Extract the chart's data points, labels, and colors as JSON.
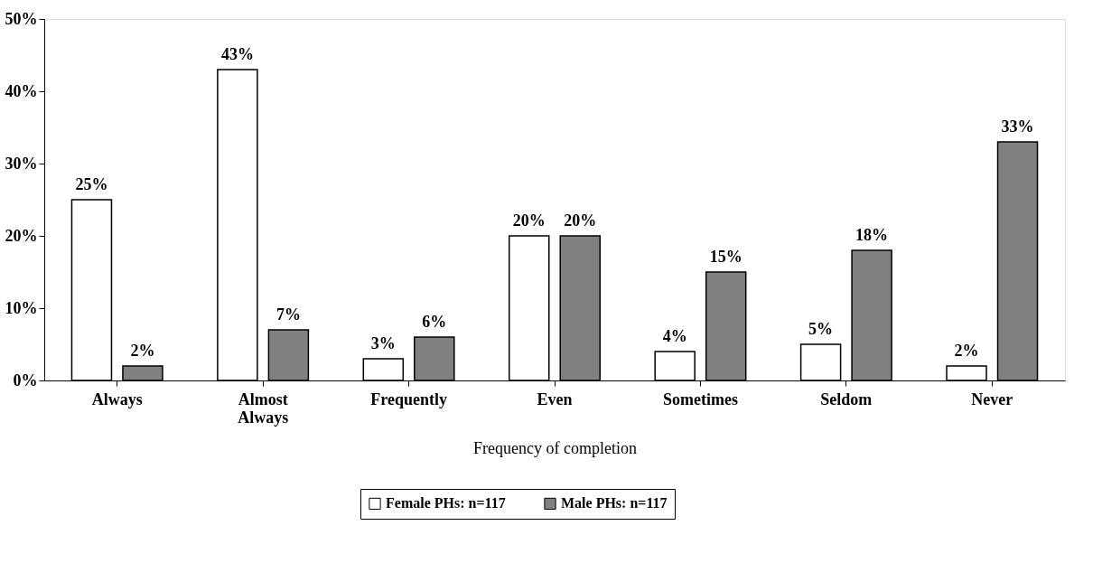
{
  "chart_data": {
    "type": "bar",
    "xlabel": "Frequency of completion",
    "categories": [
      "Always",
      "Almost Always",
      "Frequently",
      "Even",
      "Sometimes",
      "Seldom",
      "Never"
    ],
    "series": [
      {
        "name": "Female PHs: n=117",
        "color": "#ffffff",
        "values": [
          25,
          43,
          3,
          20,
          4,
          5,
          2
        ],
        "value_labels": [
          "25%",
          "43%",
          "3%",
          "20%",
          "4%",
          "5%",
          "2%"
        ]
      },
      {
        "name": "Male PHs: n=117",
        "color": "#808080",
        "values": [
          2,
          7,
          6,
          20,
          15,
          18,
          33
        ],
        "value_labels": [
          "2%",
          "7%",
          "6%",
          "20%",
          "15%",
          "18%",
          "33%"
        ]
      }
    ],
    "ylim": [
      0,
      50
    ],
    "yticks": [
      {
        "value": 0,
        "label": "0%"
      },
      {
        "value": 10,
        "label": "10%"
      },
      {
        "value": 20,
        "label": "20%"
      },
      {
        "value": 30,
        "label": "30%"
      },
      {
        "value": 40,
        "label": "40%"
      },
      {
        "value": 50,
        "label": "50%"
      }
    ],
    "grid": false,
    "legend": "bottom"
  }
}
